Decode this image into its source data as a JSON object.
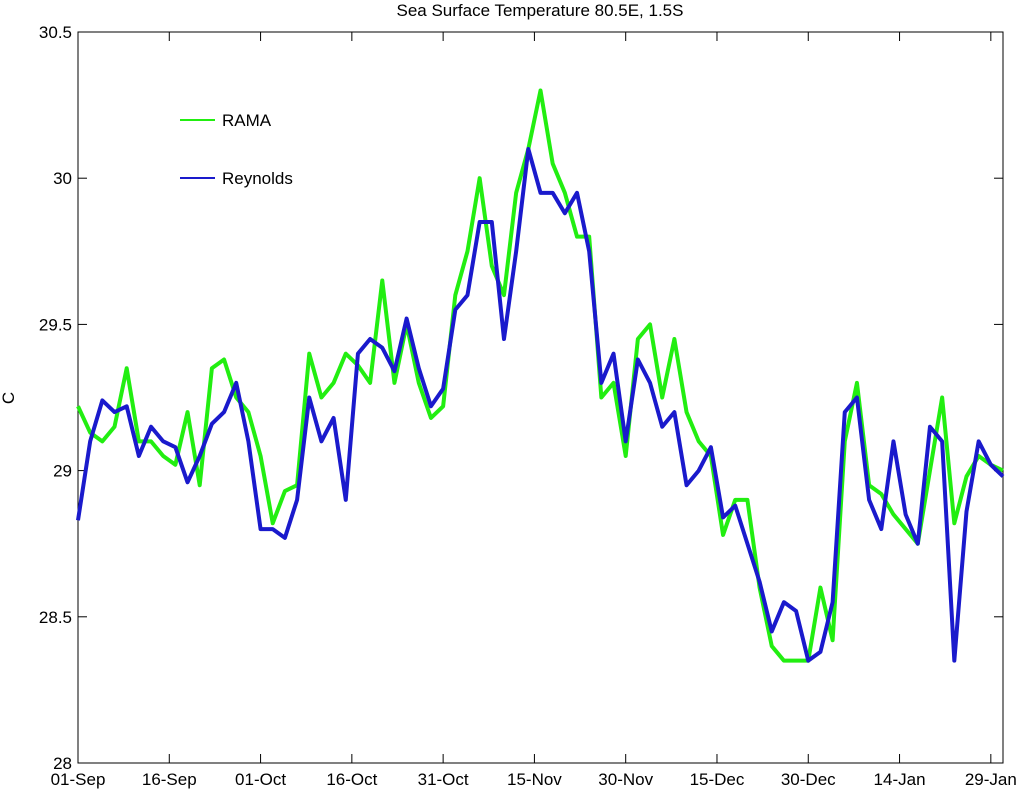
{
  "chart_data": {
    "type": "line",
    "title": "Sea Surface Temperature 80.5E, 1.5S",
    "ylabel": "C",
    "x": [
      0,
      2,
      4,
      6,
      8,
      10,
      12,
      14,
      16,
      18,
      20,
      22,
      24,
      26,
      28,
      30,
      32,
      34,
      36,
      38,
      40,
      42,
      44,
      46,
      48,
      50,
      52,
      54,
      56,
      58,
      60,
      62,
      64,
      66,
      68,
      70,
      72,
      74,
      76,
      78,
      80,
      82,
      84,
      86,
      88,
      90,
      92,
      94,
      96,
      98,
      100,
      102,
      104,
      106,
      108,
      110,
      112,
      114,
      116,
      118,
      120,
      122,
      124,
      126,
      128,
      130,
      132,
      134,
      136,
      138,
      140,
      142,
      144,
      146,
      148,
      150,
      152
    ],
    "series": [
      {
        "name": "RAMA",
        "color": "#22ee11",
        "values": [
          29.22,
          29.13,
          29.1,
          29.15,
          29.35,
          29.1,
          29.1,
          29.05,
          29.02,
          29.2,
          28.95,
          29.35,
          29.38,
          29.25,
          29.2,
          29.05,
          28.82,
          28.93,
          28.95,
          29.4,
          29.25,
          29.3,
          29.4,
          29.36,
          29.3,
          29.65,
          29.3,
          29.5,
          29.3,
          29.18,
          29.22,
          29.6,
          29.75,
          30.0,
          29.7,
          29.6,
          29.95,
          30.1,
          30.3,
          30.05,
          29.95,
          29.8,
          29.8,
          29.25,
          29.3,
          29.05,
          29.45,
          29.5,
          29.25,
          29.45,
          29.2,
          29.1,
          29.05,
          28.78,
          28.9,
          28.9,
          28.6,
          28.4,
          28.35,
          28.35,
          28.35,
          28.6,
          28.42,
          29.1,
          29.3,
          28.95,
          28.92,
          28.85,
          28.8,
          28.75,
          29.0,
          29.25,
          28.82,
          28.98,
          29.05,
          29.02,
          29.0
        ]
      },
      {
        "name": "Reynolds",
        "color": "#1a1acc",
        "values": [
          28.83,
          29.1,
          29.24,
          29.2,
          29.22,
          29.05,
          29.15,
          29.1,
          29.08,
          28.96,
          29.05,
          29.16,
          29.2,
          29.3,
          29.1,
          28.8,
          28.8,
          28.77,
          28.9,
          29.25,
          29.1,
          29.18,
          28.9,
          29.4,
          29.45,
          29.42,
          29.34,
          29.52,
          29.35,
          29.22,
          29.28,
          29.55,
          29.6,
          29.85,
          29.85,
          29.45,
          29.75,
          30.1,
          29.95,
          29.95,
          29.88,
          29.95,
          29.75,
          29.3,
          29.4,
          29.1,
          29.38,
          29.3,
          29.15,
          29.2,
          28.95,
          29.0,
          29.08,
          28.84,
          28.88,
          28.75,
          28.62,
          28.45,
          28.55,
          28.52,
          28.35,
          28.38,
          28.55,
          29.2,
          29.25,
          28.9,
          28.8,
          29.1,
          28.85,
          28.75,
          29.15,
          29.1,
          28.35,
          28.86,
          29.1,
          29.02,
          28.98
        ]
      }
    ],
    "xlim": [
      0,
      152
    ],
    "xticks": [
      {
        "value": 0,
        "label": "01-Sep"
      },
      {
        "value": 15,
        "label": "16-Sep"
      },
      {
        "value": 30,
        "label": "01-Oct"
      },
      {
        "value": 45,
        "label": "16-Oct"
      },
      {
        "value": 60,
        "label": "31-Oct"
      },
      {
        "value": 75,
        "label": "15-Nov"
      },
      {
        "value": 90,
        "label": "30-Nov"
      },
      {
        "value": 105,
        "label": "15-Dec"
      },
      {
        "value": 120,
        "label": "30-Dec"
      },
      {
        "value": 135,
        "label": "14-Jan"
      },
      {
        "value": 150,
        "label": "29-Jan"
      }
    ],
    "ylim": [
      28,
      30.5
    ],
    "yticks": [
      28,
      28.5,
      29,
      29.5,
      30,
      30.5
    ]
  }
}
